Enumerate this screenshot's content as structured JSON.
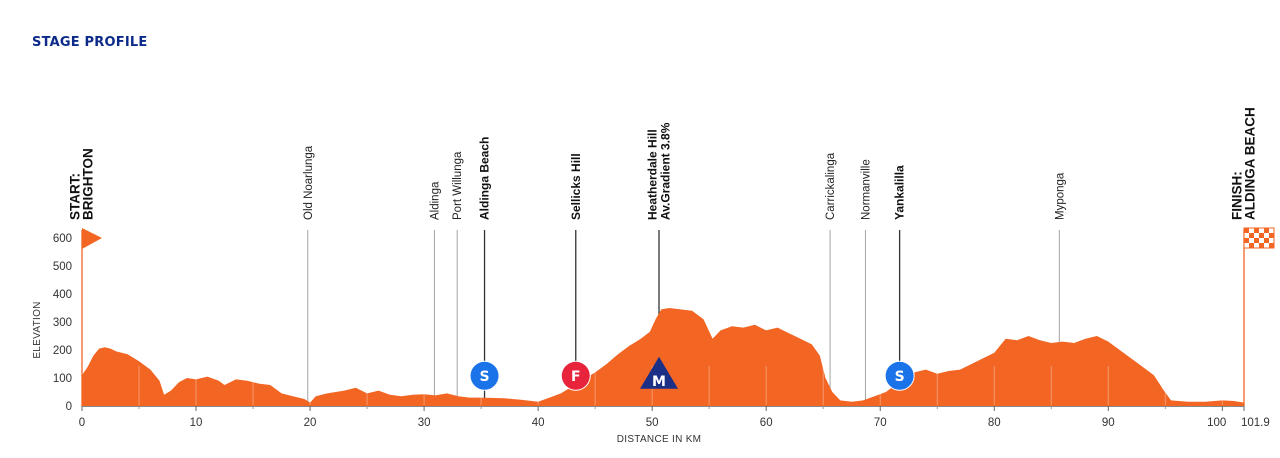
{
  "heading": "STAGE PROFILE",
  "colors": {
    "profile": "#f26522",
    "sprint": "#1a73e8",
    "feed": "#e8243c",
    "mountain": "#1b2f87",
    "heading": "#0b2a8a"
  },
  "chart_data": {
    "type": "area",
    "xlabel": "DISTANCE IN KM",
    "ylabel": "ELEVATION",
    "xlim": [
      0,
      101.9
    ],
    "ylim": [
      0,
      600
    ],
    "x_ticks": [
      "0",
      "10",
      "20",
      "30",
      "40",
      "50",
      "60",
      "70",
      "80",
      "90",
      "100",
      "101.9"
    ],
    "y_ticks": [
      "0",
      "100",
      "200",
      "300",
      "400",
      "500",
      "600"
    ],
    "profile": [
      [
        0,
        110
      ],
      [
        0.5,
        140
      ],
      [
        1,
        180
      ],
      [
        1.5,
        205
      ],
      [
        2,
        210
      ],
      [
        2.5,
        205
      ],
      [
        3,
        195
      ],
      [
        4,
        185
      ],
      [
        5,
        160
      ],
      [
        6,
        130
      ],
      [
        6.8,
        90
      ],
      [
        7.2,
        40
      ],
      [
        7.8,
        55
      ],
      [
        8.5,
        85
      ],
      [
        9.2,
        100
      ],
      [
        10,
        95
      ],
      [
        11,
        105
      ],
      [
        12,
        90
      ],
      [
        12.5,
        75
      ],
      [
        13.5,
        95
      ],
      [
        14.5,
        90
      ],
      [
        15.5,
        80
      ],
      [
        16.5,
        75
      ],
      [
        17.5,
        45
      ],
      [
        18.5,
        35
      ],
      [
        19.5,
        25
      ],
      [
        20,
        12
      ],
      [
        20.5,
        35
      ],
      [
        21.5,
        45
      ],
      [
        23,
        55
      ],
      [
        24,
        65
      ],
      [
        25,
        45
      ],
      [
        26,
        55
      ],
      [
        27,
        40
      ],
      [
        28,
        35
      ],
      [
        29,
        40
      ],
      [
        30,
        42
      ],
      [
        31,
        38
      ],
      [
        32,
        45
      ],
      [
        33,
        35
      ],
      [
        34,
        30
      ],
      [
        35,
        30
      ],
      [
        37,
        28
      ],
      [
        38.5,
        22
      ],
      [
        40,
        15
      ],
      [
        41,
        30
      ],
      [
        42,
        45
      ],
      [
        43,
        70
      ],
      [
        44,
        95
      ],
      [
        45,
        120
      ],
      [
        46,
        150
      ],
      [
        47,
        185
      ],
      [
        48,
        215
      ],
      [
        49,
        240
      ],
      [
        49.8,
        265
      ],
      [
        50.3,
        310
      ],
      [
        50.8,
        345
      ],
      [
        51.5,
        350
      ],
      [
        52.5,
        345
      ],
      [
        53.5,
        340
      ],
      [
        54.5,
        310
      ],
      [
        55.3,
        240
      ],
      [
        56,
        270
      ],
      [
        57,
        285
      ],
      [
        58,
        280
      ],
      [
        59,
        290
      ],
      [
        60,
        270
      ],
      [
        61,
        280
      ],
      [
        62,
        260
      ],
      [
        63,
        240
      ],
      [
        64,
        220
      ],
      [
        64.7,
        180
      ],
      [
        65.2,
        100
      ],
      [
        65.8,
        50
      ],
      [
        66.5,
        20
      ],
      [
        67.5,
        15
      ],
      [
        68.5,
        20
      ],
      [
        69.5,
        35
      ],
      [
        70.5,
        50
      ],
      [
        71.5,
        80
      ],
      [
        72,
        100
      ],
      [
        73,
        120
      ],
      [
        74,
        130
      ],
      [
        75,
        115
      ],
      [
        76,
        125
      ],
      [
        77,
        130
      ],
      [
        78,
        150
      ],
      [
        79,
        170
      ],
      [
        80,
        190
      ],
      [
        81,
        240
      ],
      [
        82,
        235
      ],
      [
        83,
        250
      ],
      [
        84,
        235
      ],
      [
        85,
        225
      ],
      [
        86,
        230
      ],
      [
        87,
        225
      ],
      [
        88,
        240
      ],
      [
        89,
        250
      ],
      [
        90,
        230
      ],
      [
        91,
        200
      ],
      [
        92,
        170
      ],
      [
        93,
        140
      ],
      [
        94,
        110
      ],
      [
        94.8,
        60
      ],
      [
        95.5,
        20
      ],
      [
        97,
        15
      ],
      [
        98.5,
        15
      ],
      [
        100,
        20
      ],
      [
        101,
        18
      ],
      [
        101.9,
        12
      ]
    ],
    "places": [
      {
        "km": 0,
        "lines": [
          "START:",
          "BRIGHTON"
        ],
        "bold": true,
        "line_top": 230
      },
      {
        "km": 19.8,
        "lines": [
          "Old Noarlunga"
        ],
        "bold": false,
        "line_top": 230
      },
      {
        "km": 30.9,
        "lines": [
          "Aldinga"
        ],
        "bold": false,
        "line_top": 230
      },
      {
        "km": 32.9,
        "lines": [
          "Port Willunga"
        ],
        "bold": false,
        "line_top": 230
      },
      {
        "km": 35.3,
        "lines": [
          "Aldinga Beach"
        ],
        "bold": true,
        "line_top": 230
      },
      {
        "km": 43.3,
        "lines": [
          "Sellicks Hill"
        ],
        "bold": true,
        "line_top": 230
      },
      {
        "km": 50.6,
        "lines": [
          "Heatherdale Hill",
          "Av.Gradient 3.8%"
        ],
        "bold": true,
        "line_top": 230
      },
      {
        "km": 65.6,
        "lines": [
          "Carrickalinga"
        ],
        "bold": false,
        "line_top": 230
      },
      {
        "km": 68.7,
        "lines": [
          "Normanville"
        ],
        "bold": false,
        "line_top": 230
      },
      {
        "km": 71.7,
        "lines": [
          "Yankalilla"
        ],
        "bold": true,
        "line_top": 230
      },
      {
        "km": 85.7,
        "lines": [
          "Myponga"
        ],
        "bold": false,
        "line_top": 230
      },
      {
        "km": 101.9,
        "lines": [
          "FINISH:",
          "ALDINGA BEACH"
        ],
        "bold": true,
        "line_top": 230
      }
    ],
    "markers": [
      {
        "km": 35.3,
        "label": "S",
        "kind": "sprint"
      },
      {
        "km": 43.3,
        "label": "F",
        "kind": "feed"
      },
      {
        "km": 50.6,
        "label": "M",
        "kind": "mountain"
      },
      {
        "km": 71.7,
        "label": "S",
        "kind": "sprint"
      }
    ]
  }
}
